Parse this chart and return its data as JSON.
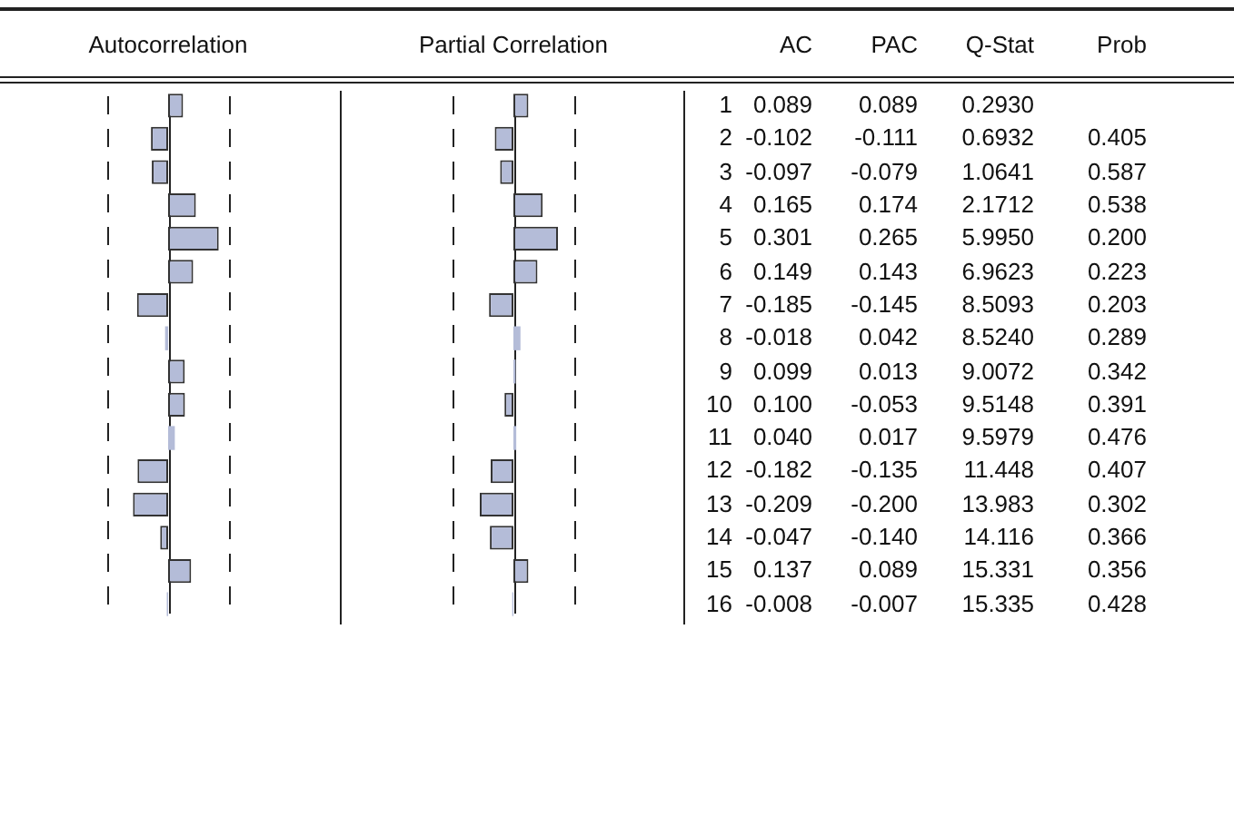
{
  "chart_data": [
    {
      "type": "bar",
      "orientation": "horizontal",
      "title": "Autocorrelation",
      "categories": [
        "1",
        "2",
        "3",
        "4",
        "5",
        "6",
        "7",
        "8",
        "9",
        "10",
        "11",
        "12",
        "13",
        "14",
        "15",
        "16"
      ],
      "xlim": [
        -1,
        1
      ],
      "tick_labels": "y",
      "ref_lines": [
        {
          "axis": "x",
          "value": -0.36,
          "line_style": "dashed"
        },
        {
          "axis": "x",
          "value": 0.36,
          "line_style": "dashed"
        }
      ],
      "series": [
        {
          "name": "AC",
          "color": "#b4bcd8",
          "values": [
            0.089,
            -0.102,
            -0.097,
            0.165,
            0.301,
            0.149,
            -0.185,
            -0.018,
            0.099,
            0.1,
            0.04,
            -0.182,
            -0.209,
            -0.047,
            0.137,
            -0.008
          ],
          "value_labels": [
            "0.089",
            "-0.102",
            "-0.097",
            "0.165",
            "0.301",
            "0.149",
            "-0.185",
            "-0.018",
            "0.099",
            "0.100",
            "0.040",
            "-0.182",
            "-0.209",
            "-0.047",
            "0.137",
            "-0.008"
          ]
        }
      ]
    },
    {
      "type": "bar",
      "orientation": "horizontal",
      "title": "Partial Correlation",
      "categories": [
        "1",
        "2",
        "3",
        "4",
        "5",
        "6",
        "7",
        "8",
        "9",
        "10",
        "11",
        "12",
        "13",
        "14",
        "15",
        "16"
      ],
      "xlim": [
        -1,
        1
      ],
      "tick_labels": false,
      "ref_lines": [
        {
          "axis": "x",
          "value": -0.36,
          "line_style": "dashed"
        },
        {
          "axis": "x",
          "value": 0.36,
          "line_style": "dashed"
        }
      ],
      "series": [
        {
          "name": "PAC",
          "color": "#b4bcd8",
          "values": [
            0.089,
            -0.111,
            -0.079,
            0.174,
            0.265,
            0.143,
            -0.145,
            0.042,
            0.013,
            -0.053,
            0.017,
            -0.135,
            -0.2,
            -0.14,
            0.089,
            -0.007
          ],
          "value_labels": [
            "0.089",
            "-0.111",
            "-0.079",
            "0.174",
            "0.265",
            "0.143",
            "-0.145",
            "0.042",
            "0.013",
            "-0.053",
            "0.017",
            "-0.135",
            "-0.200",
            "-0.140",
            "0.089",
            "-0.007"
          ]
        }
      ]
    },
    {
      "type": "other",
      "annotations": [
        "Q-Stat",
        "0.2930",
        "0.6932",
        "1.0641",
        "2.1712",
        "5.9950",
        "6.9623",
        "8.5093",
        "8.5240",
        "9.0072",
        "9.5148",
        "9.5979",
        "11.448",
        "13.983",
        "14.116",
        "15.331",
        "15.335",
        "Prob",
        "0.405",
        "0.587",
        "0.538",
        "0.200",
        "0.223",
        "0.203",
        "0.289",
        "0.342",
        "0.391",
        "0.476",
        "0.407",
        "0.302",
        "0.366",
        "0.356",
        "0.428"
      ]
    }
  ]
}
